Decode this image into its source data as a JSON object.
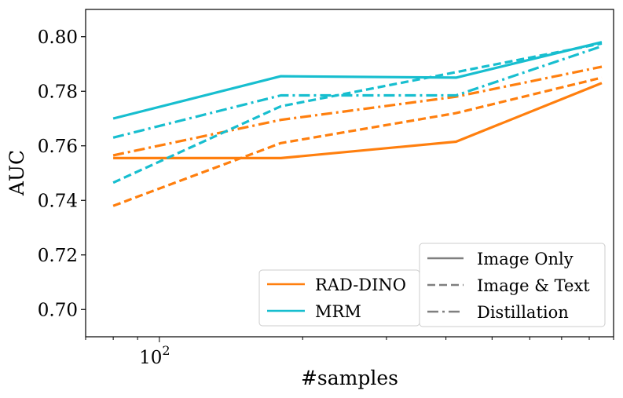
{
  "chart_data": {
    "type": "line",
    "xscale": "log",
    "xlabel": "#samples",
    "ylabel": "AUC",
    "xlim": [
      70,
      900
    ],
    "ylim": [
      0.69,
      0.81
    ],
    "x": [
      80,
      180,
      420,
      850
    ],
    "x_tick_labels": [
      {
        "value": 100,
        "base": "10",
        "exp": "2"
      }
    ],
    "y_ticks": [
      0.7,
      0.72,
      0.74,
      0.76,
      0.78,
      0.8
    ],
    "y_tick_labels": [
      "0.70",
      "0.72",
      "0.74",
      "0.76",
      "0.78",
      "0.80"
    ],
    "series": [
      {
        "name": "RAD-DINO",
        "color": "#ff7f0e",
        "style": "Image Only",
        "values": [
          0.7555,
          0.7555,
          0.7615,
          0.783
        ]
      },
      {
        "name": "RAD-DINO",
        "color": "#ff7f0e",
        "style": "Image & Text",
        "values": [
          0.738,
          0.761,
          0.772,
          0.785
        ]
      },
      {
        "name": "RAD-DINO",
        "color": "#ff7f0e",
        "style": "Distillation",
        "values": [
          0.7565,
          0.7695,
          0.778,
          0.789
        ]
      },
      {
        "name": "MRM",
        "color": "#17becf",
        "style": "Image Only",
        "values": [
          0.77,
          0.7855,
          0.785,
          0.798
        ]
      },
      {
        "name": "MRM",
        "color": "#17becf",
        "style": "Image & Text",
        "values": [
          0.7465,
          0.7745,
          0.787,
          0.7975
        ]
      },
      {
        "name": "MRM",
        "color": "#17becf",
        "style": "Distillation",
        "values": [
          0.763,
          0.7785,
          0.7785,
          0.7965
        ]
      }
    ],
    "legend_models": {
      "placement": "lower-center",
      "entries": [
        {
          "label": "RAD-DINO",
          "color": "#ff7f0e"
        },
        {
          "label": "MRM",
          "color": "#17becf"
        }
      ]
    },
    "legend_styles": {
      "placement": "lower-right",
      "color": "#7f7f7f",
      "entries": [
        {
          "label": "Image Only",
          "dash": "solid"
        },
        {
          "label": "Image & Text",
          "dash": "dashed"
        },
        {
          "label": "Distillation",
          "dash": "dashdot"
        }
      ]
    }
  }
}
